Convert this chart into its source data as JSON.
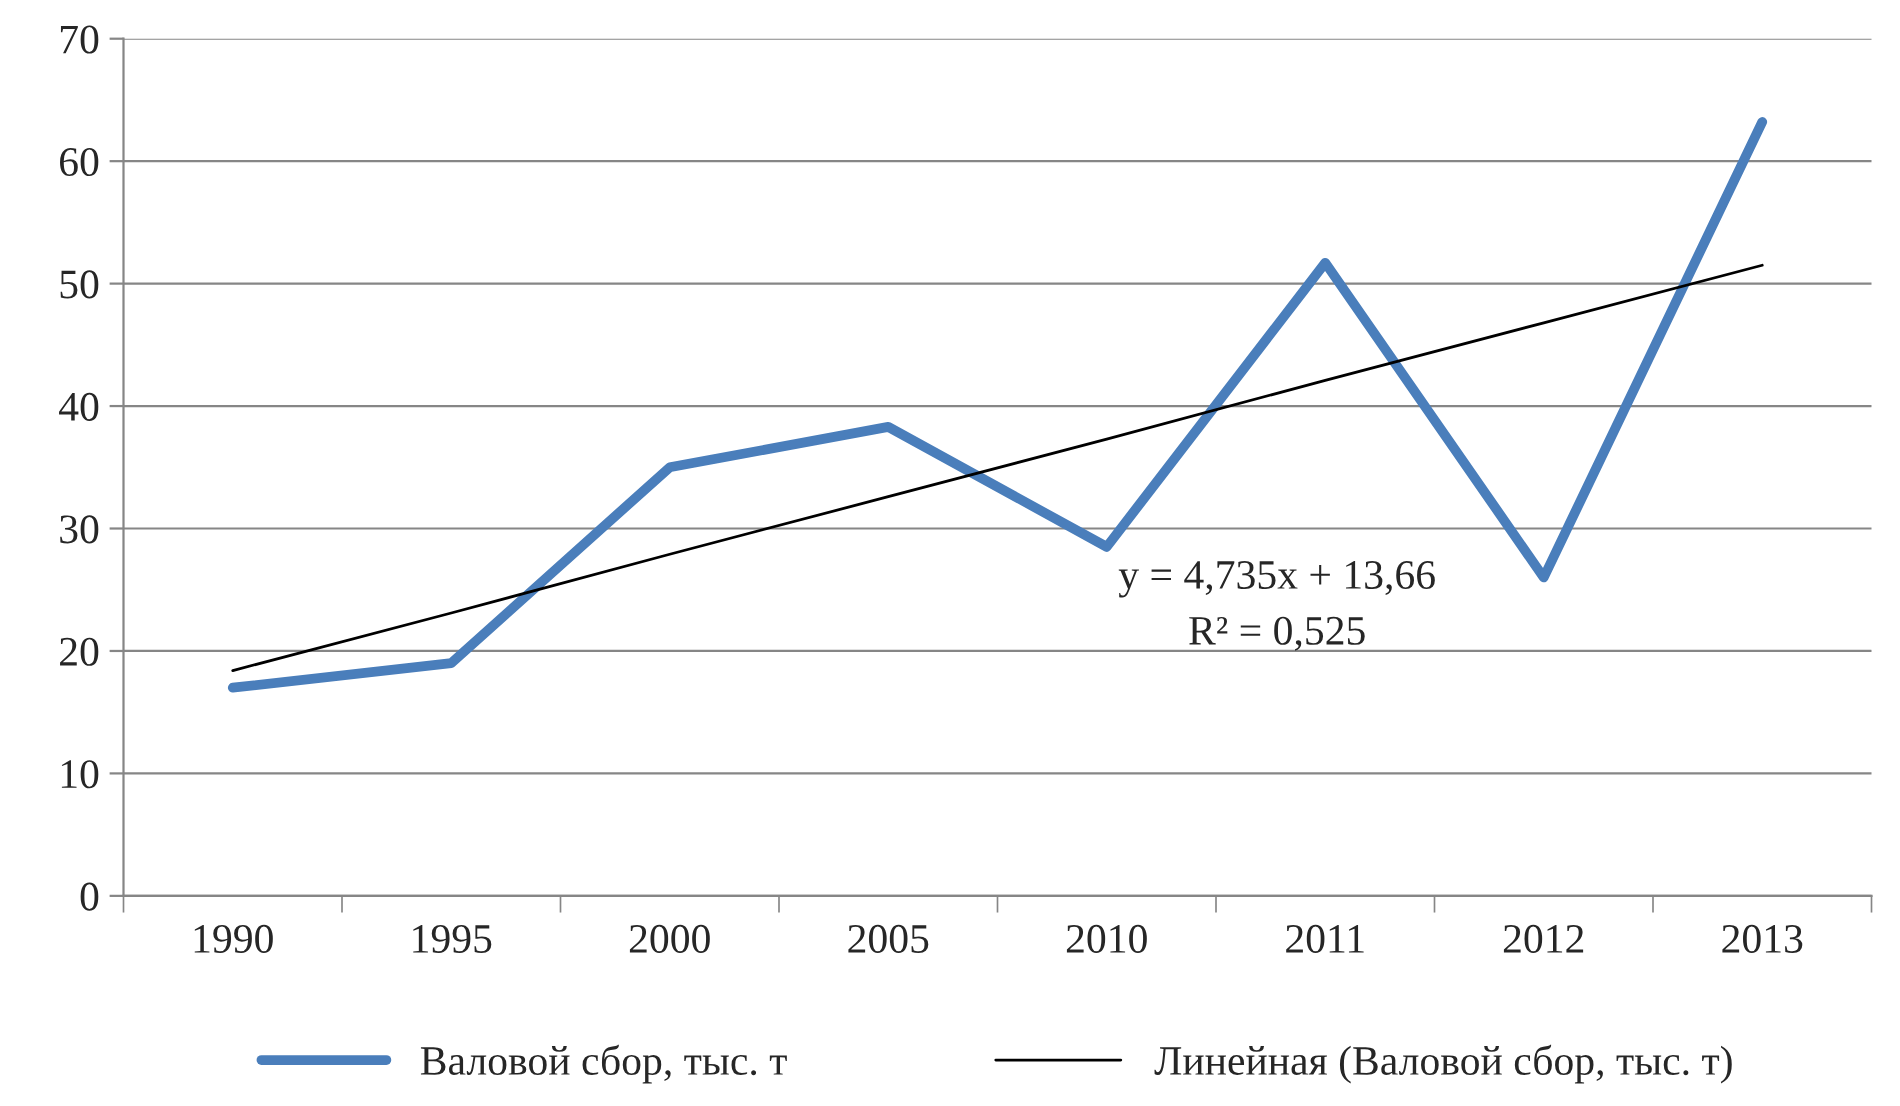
{
  "chart_data": {
    "type": "line",
    "categories": [
      "1990",
      "1995",
      "2000",
      "2005",
      "2010",
      "2011",
      "2012",
      "2013"
    ],
    "series": [
      {
        "name": "Валовой сбор, тыс. т",
        "color": "#4a7ebb",
        "values": [
          17,
          19,
          35,
          38.3,
          28.5,
          51.7,
          26,
          63.2
        ]
      },
      {
        "name": "Линейная (Валовой сбор, тыс. т)",
        "color": "#000000",
        "values": [
          18.4,
          23.1,
          27.9,
          32.6,
          37.3,
          42.1,
          46.8,
          51.5
        ]
      }
    ],
    "ylim": [
      0,
      70
    ],
    "yticks": [
      0,
      10,
      20,
      30,
      40,
      50,
      60,
      70
    ],
    "grid": "y",
    "legend": "bottom",
    "marker": "none",
    "line_style": "solid",
    "annotations": [
      "y = 4,735x + 13,66",
      "R² = 0,525"
    ]
  }
}
